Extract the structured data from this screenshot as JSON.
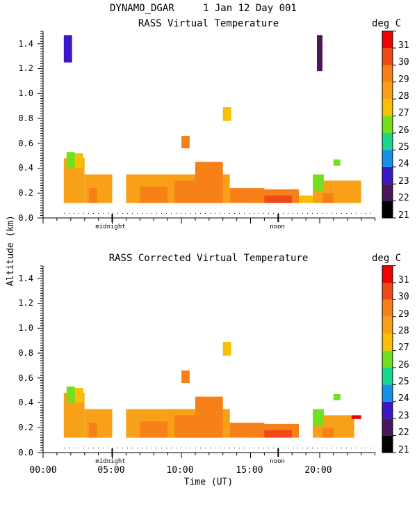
{
  "header": {
    "site_title": "DYNAMO_DGAR",
    "date_text": "1 Jan 12 Day 001"
  },
  "panels": [
    {
      "title": "RASS Virtual Temperature",
      "colorbar_unit": "deg C",
      "day_markers": [
        "midnight",
        "noon"
      ]
    },
    {
      "title": "RASS Corrected Virtual Temperature",
      "colorbar_unit": "deg C",
      "day_markers": [
        "midnight",
        "noon"
      ]
    }
  ],
  "axes": {
    "ylabel": "Altitude (km)",
    "xlabel": "Time (UT)",
    "y_ticks": [
      "0.0",
      "0.2",
      "0.4",
      "0.6",
      "0.8",
      "1.0",
      "1.2",
      "1.4"
    ],
    "x_ticks": [
      "00:00",
      "05:00",
      "10:00",
      "15:00",
      "20:00"
    ]
  },
  "colorbar": {
    "labels": [
      "21",
      "22",
      "23",
      "24",
      "25",
      "26",
      "27",
      "28",
      "29",
      "30",
      "31"
    ],
    "colors": [
      "#000000",
      "#4a1858",
      "#3a18c8",
      "#1890e8",
      "#18d890",
      "#70e020",
      "#f8c000",
      "#f8a018",
      "#f88018",
      "#f04818",
      "#f00000"
    ]
  },
  "chart_data": [
    {
      "type": "heatmap",
      "title": "RASS Virtual Temperature",
      "xlabel": "Time (UT)",
      "ylabel": "Altitude (km)",
      "x_unit": "hours UT",
      "xlim": [
        0,
        24
      ],
      "ylim": [
        0,
        1.5
      ],
      "z_unit": "deg C",
      "zlim": [
        21,
        31
      ],
      "day_marker_hours": [
        5,
        17
      ],
      "cells": [
        {
          "x0": 1.5,
          "x1": 3.0,
          "y0": 0.12,
          "y1": 0.48,
          "value": 28.5
        },
        {
          "x0": 1.7,
          "x1": 2.3,
          "y0": 0.4,
          "y1": 0.53,
          "value": 26
        },
        {
          "x0": 2.3,
          "x1": 2.9,
          "y0": 0.4,
          "y1": 0.52,
          "value": 27
        },
        {
          "x0": 3.0,
          "x1": 5.0,
          "y0": 0.12,
          "y1": 0.35,
          "value": 28.5
        },
        {
          "x0": 3.3,
          "x1": 3.9,
          "y0": 0.12,
          "y1": 0.24,
          "value": 29.5
        },
        {
          "x0": 6.0,
          "x1": 13.5,
          "y0": 0.12,
          "y1": 0.35,
          "value": 28.5
        },
        {
          "x0": 7.0,
          "x1": 9.0,
          "y0": 0.12,
          "y1": 0.25,
          "value": 29.5
        },
        {
          "x0": 9.5,
          "x1": 13.0,
          "y0": 0.12,
          "y1": 0.3,
          "value": 29.5
        },
        {
          "x0": 11.0,
          "x1": 13.0,
          "y0": 0.3,
          "y1": 0.45,
          "value": 29.5
        },
        {
          "x0": 13.5,
          "x1": 16.0,
          "y0": 0.12,
          "y1": 0.24,
          "value": 29.5
        },
        {
          "x0": 15.0,
          "x1": 18.5,
          "y0": 0.12,
          "y1": 0.23,
          "value": 29.5
        },
        {
          "x0": 16.0,
          "x1": 18.0,
          "y0": 0.12,
          "y1": 0.18,
          "value": 30.5
        },
        {
          "x0": 18.5,
          "x1": 19.5,
          "y0": 0.12,
          "y1": 0.18,
          "value": 27
        },
        {
          "x0": 19.5,
          "x1": 23.0,
          "y0": 0.12,
          "y1": 0.3,
          "value": 28.5
        },
        {
          "x0": 19.5,
          "x1": 20.3,
          "y0": 0.22,
          "y1": 0.35,
          "value": 26
        },
        {
          "x0": 20.2,
          "x1": 21.0,
          "y0": 0.12,
          "y1": 0.2,
          "value": 29.5
        },
        {
          "x0": 21.0,
          "x1": 21.5,
          "y0": 0.42,
          "y1": 0.47,
          "value": 26
        },
        {
          "x0": 10.0,
          "x1": 10.6,
          "y0": 0.56,
          "y1": 0.66,
          "value": 29.5
        },
        {
          "x0": 13.0,
          "x1": 13.6,
          "y0": 0.78,
          "y1": 0.89,
          "value": 27
        },
        {
          "x0": 1.5,
          "x1": 2.1,
          "y0": 1.25,
          "y1": 1.47,
          "value": 23
        },
        {
          "x0": 19.8,
          "x1": 20.2,
          "y0": 1.18,
          "y1": 1.47,
          "value": 22
        }
      ]
    },
    {
      "type": "heatmap",
      "title": "RASS Corrected Virtual Temperature",
      "xlabel": "Time (UT)",
      "ylabel": "Altitude (km)",
      "x_unit": "hours UT",
      "xlim": [
        0,
        24
      ],
      "ylim": [
        0,
        1.5
      ],
      "z_unit": "deg C",
      "zlim": [
        21,
        31
      ],
      "day_marker_hours": [
        5,
        17
      ],
      "cells": [
        {
          "x0": 1.5,
          "x1": 3.0,
          "y0": 0.12,
          "y1": 0.48,
          "value": 28.5
        },
        {
          "x0": 1.7,
          "x1": 2.3,
          "y0": 0.4,
          "y1": 0.53,
          "value": 26
        },
        {
          "x0": 2.3,
          "x1": 2.9,
          "y0": 0.4,
          "y1": 0.52,
          "value": 27
        },
        {
          "x0": 3.0,
          "x1": 5.0,
          "y0": 0.12,
          "y1": 0.35,
          "value": 28.5
        },
        {
          "x0": 3.3,
          "x1": 3.9,
          "y0": 0.12,
          "y1": 0.24,
          "value": 29.5
        },
        {
          "x0": 6.0,
          "x1": 13.5,
          "y0": 0.12,
          "y1": 0.35,
          "value": 28.5
        },
        {
          "x0": 7.0,
          "x1": 9.0,
          "y0": 0.12,
          "y1": 0.25,
          "value": 29.5
        },
        {
          "x0": 9.5,
          "x1": 13.0,
          "y0": 0.12,
          "y1": 0.3,
          "value": 29.5
        },
        {
          "x0": 11.0,
          "x1": 13.0,
          "y0": 0.3,
          "y1": 0.45,
          "value": 29.5
        },
        {
          "x0": 13.5,
          "x1": 16.0,
          "y0": 0.12,
          "y1": 0.24,
          "value": 29.5
        },
        {
          "x0": 15.0,
          "x1": 18.5,
          "y0": 0.12,
          "y1": 0.23,
          "value": 29.5
        },
        {
          "x0": 16.0,
          "x1": 18.0,
          "y0": 0.12,
          "y1": 0.18,
          "value": 30.5
        },
        {
          "x0": 19.5,
          "x1": 22.5,
          "y0": 0.12,
          "y1": 0.3,
          "value": 28.5
        },
        {
          "x0": 19.5,
          "x1": 20.3,
          "y0": 0.22,
          "y1": 0.35,
          "value": 26
        },
        {
          "x0": 20.2,
          "x1": 21.0,
          "y0": 0.12,
          "y1": 0.2,
          "value": 29.5
        },
        {
          "x0": 21.0,
          "x1": 21.5,
          "y0": 0.42,
          "y1": 0.47,
          "value": 26
        },
        {
          "x0": 22.3,
          "x1": 23.0,
          "y0": 0.27,
          "y1": 0.3,
          "value": 31
        },
        {
          "x0": 10.0,
          "x1": 10.6,
          "y0": 0.56,
          "y1": 0.66,
          "value": 29.5
        },
        {
          "x0": 13.0,
          "x1": 13.6,
          "y0": 0.78,
          "y1": 0.89,
          "value": 27
        }
      ]
    }
  ]
}
